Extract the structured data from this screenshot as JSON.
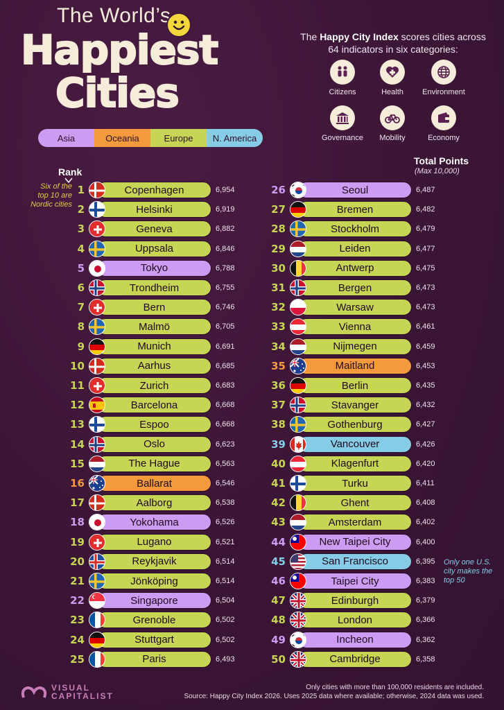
{
  "title_line1": "The World’s",
  "title_line2": "Happiest",
  "title_line3": "Cities",
  "legend": [
    {
      "label": "Asia",
      "color": "#cc9cf2"
    },
    {
      "label": "Oceania",
      "color": "#f49a3c"
    },
    {
      "label": "Europe",
      "color": "#c6d553"
    },
    {
      "label": "N. America",
      "color": "#86cce6"
    }
  ],
  "intro_pre": "The ",
  "intro_bold": "Happy City Index",
  "intro_post": " scores cities across 64 indicators in six categories:",
  "categories": [
    {
      "label": "Citizens",
      "icon": "people-icon"
    },
    {
      "label": "Health",
      "icon": "heart-cross-icon"
    },
    {
      "label": "Environment",
      "icon": "globe-icon"
    },
    {
      "label": "Governance",
      "icon": "building-icon"
    },
    {
      "label": "Mobility",
      "icon": "bicycle-icon"
    },
    {
      "label": "Economy",
      "icon": "wallet-icon"
    }
  ],
  "rank_header": "Rank",
  "total_header": "Total Points",
  "total_sub": "(Max 10,000)",
  "note_nordic": "Six of the top 10 are Nordic cities",
  "note_us": "Only one U.S. city makes the top 50",
  "region_colors": {
    "Asia": "#cc9cf2",
    "Oceania": "#f49a3c",
    "Europe": "#c6d553",
    "N. America": "#86cce6"
  },
  "cities": [
    {
      "rank": "1",
      "city": "Copenhagen",
      "points": "6,954",
      "region": "Europe",
      "flag": "denmark"
    },
    {
      "rank": "2",
      "city": "Helsinki",
      "points": "6,919",
      "region": "Europe",
      "flag": "finland"
    },
    {
      "rank": "3",
      "city": "Geneva",
      "points": "6,882",
      "region": "Europe",
      "flag": "switzerland"
    },
    {
      "rank": "4",
      "city": "Uppsala",
      "points": "6,846",
      "region": "Europe",
      "flag": "sweden"
    },
    {
      "rank": "5",
      "city": "Tokyo",
      "points": "6,788",
      "region": "Asia",
      "flag": "japan"
    },
    {
      "rank": "6",
      "city": "Trondheim",
      "points": "6,755",
      "region": "Europe",
      "flag": "norway"
    },
    {
      "rank": "7",
      "city": "Bern",
      "points": "6,746",
      "region": "Europe",
      "flag": "switzerland"
    },
    {
      "rank": "8",
      "city": "Malmö",
      "points": "6,705",
      "region": "Europe",
      "flag": "sweden"
    },
    {
      "rank": "9",
      "city": "Munich",
      "points": "6,691",
      "region": "Europe",
      "flag": "germany"
    },
    {
      "rank": "10",
      "city": "Aarhus",
      "points": "6,685",
      "region": "Europe",
      "flag": "denmark"
    },
    {
      "rank": "11",
      "city": "Zurich",
      "points": "6,683",
      "region": "Europe",
      "flag": "switzerland"
    },
    {
      "rank": "12",
      "city": "Barcelona",
      "points": "6,668",
      "region": "Europe",
      "flag": "spain"
    },
    {
      "rank": "13",
      "city": "Espoo",
      "points": "6,668",
      "region": "Europe",
      "flag": "finland"
    },
    {
      "rank": "14",
      "city": "Oslo",
      "points": "6,623",
      "region": "Europe",
      "flag": "norway"
    },
    {
      "rank": "15",
      "city": "The Hague",
      "points": "6,563",
      "region": "Europe",
      "flag": "netherlands"
    },
    {
      "rank": "16",
      "city": "Ballarat",
      "points": "6,546",
      "region": "Oceania",
      "flag": "australia"
    },
    {
      "rank": "17",
      "city": "Aalborg",
      "points": "6,538",
      "region": "Europe",
      "flag": "denmark"
    },
    {
      "rank": "18",
      "city": "Yokohama",
      "points": "6,526",
      "region": "Asia",
      "flag": "japan"
    },
    {
      "rank": "19",
      "city": "Lugano",
      "points": "6,521",
      "region": "Europe",
      "flag": "switzerland"
    },
    {
      "rank": "20",
      "city": "Reykjavik",
      "points": "6,514",
      "region": "Europe",
      "flag": "iceland"
    },
    {
      "rank": "21",
      "city": "Jönköping",
      "points": "6,514",
      "region": "Europe",
      "flag": "sweden"
    },
    {
      "rank": "22",
      "city": "Singapore",
      "points": "6,504",
      "region": "Asia",
      "flag": "singapore"
    },
    {
      "rank": "23",
      "city": "Grenoble",
      "points": "6,502",
      "region": "Europe",
      "flag": "france"
    },
    {
      "rank": "24",
      "city": "Stuttgart",
      "points": "6,502",
      "region": "Europe",
      "flag": "germany"
    },
    {
      "rank": "25",
      "city": "Paris",
      "points": "6,493",
      "region": "Europe",
      "flag": "france"
    },
    {
      "rank": "26",
      "city": "Seoul",
      "points": "6,487",
      "region": "Asia",
      "flag": "korea"
    },
    {
      "rank": "27",
      "city": "Bremen",
      "points": "6,482",
      "region": "Europe",
      "flag": "germany"
    },
    {
      "rank": "28",
      "city": "Stockholm",
      "points": "6,479",
      "region": "Europe",
      "flag": "sweden"
    },
    {
      "rank": "29",
      "city": "Leiden",
      "points": "6,477",
      "region": "Europe",
      "flag": "netherlands"
    },
    {
      "rank": "30",
      "city": "Antwerp",
      "points": "6,475",
      "region": "Europe",
      "flag": "belgium"
    },
    {
      "rank": "31",
      "city": "Bergen",
      "points": "6,473",
      "region": "Europe",
      "flag": "norway"
    },
    {
      "rank": "32",
      "city": "Warsaw",
      "points": "6,473",
      "region": "Europe",
      "flag": "poland"
    },
    {
      "rank": "33",
      "city": "Vienna",
      "points": "6,461",
      "region": "Europe",
      "flag": "austria"
    },
    {
      "rank": "34",
      "city": "Nijmegen",
      "points": "6,459",
      "region": "Europe",
      "flag": "netherlands"
    },
    {
      "rank": "35",
      "city": "Maitland",
      "points": "6,453",
      "region": "Oceania",
      "flag": "australia"
    },
    {
      "rank": "36",
      "city": "Berlin",
      "points": "6,435",
      "region": "Europe",
      "flag": "germany"
    },
    {
      "rank": "37",
      "city": "Stavanger",
      "points": "6,432",
      "region": "Europe",
      "flag": "norway"
    },
    {
      "rank": "38",
      "city": "Gothenburg",
      "points": "6,427",
      "region": "Europe",
      "flag": "sweden"
    },
    {
      "rank": "39",
      "city": "Vancouver",
      "points": "6,426",
      "region": "N. America",
      "flag": "canada"
    },
    {
      "rank": "40",
      "city": "Klagenfurt",
      "points": "6,420",
      "region": "Europe",
      "flag": "austria"
    },
    {
      "rank": "41",
      "city": "Turku",
      "points": "6,411",
      "region": "Europe",
      "flag": "finland"
    },
    {
      "rank": "42",
      "city": "Ghent",
      "points": "6,408",
      "region": "Europe",
      "flag": "belgium"
    },
    {
      "rank": "43",
      "city": "Amsterdam",
      "points": "6,402",
      "region": "Europe",
      "flag": "netherlands"
    },
    {
      "rank": "44",
      "city": "New Taipei City",
      "points": "6,400",
      "region": "Asia",
      "flag": "taiwan"
    },
    {
      "rank": "45",
      "city": "San Francisco",
      "points": "6,395",
      "region": "N. America",
      "flag": "usa"
    },
    {
      "rank": "46",
      "city": "Taipei City",
      "points": "6,383",
      "region": "Asia",
      "flag": "taiwan"
    },
    {
      "rank": "47",
      "city": "Edinburgh",
      "points": "6,379",
      "region": "Europe",
      "flag": "uk"
    },
    {
      "rank": "48",
      "city": "London",
      "points": "6,366",
      "region": "Europe",
      "flag": "uk"
    },
    {
      "rank": "49",
      "city": "Incheon",
      "points": "6,362",
      "region": "Asia",
      "flag": "korea"
    },
    {
      "rank": "50",
      "city": "Cambridge",
      "points": "6,358",
      "region": "Europe",
      "flag": "uk"
    }
  ],
  "footnote": "Only cities with more than 100,000 residents are included.",
  "source": "Source: Happy City Index 2026. Uses 2025 data where available; otherwise, 2024 data was used.",
  "logo_line1": "VISUAL",
  "logo_line2": "CAPITALIST"
}
